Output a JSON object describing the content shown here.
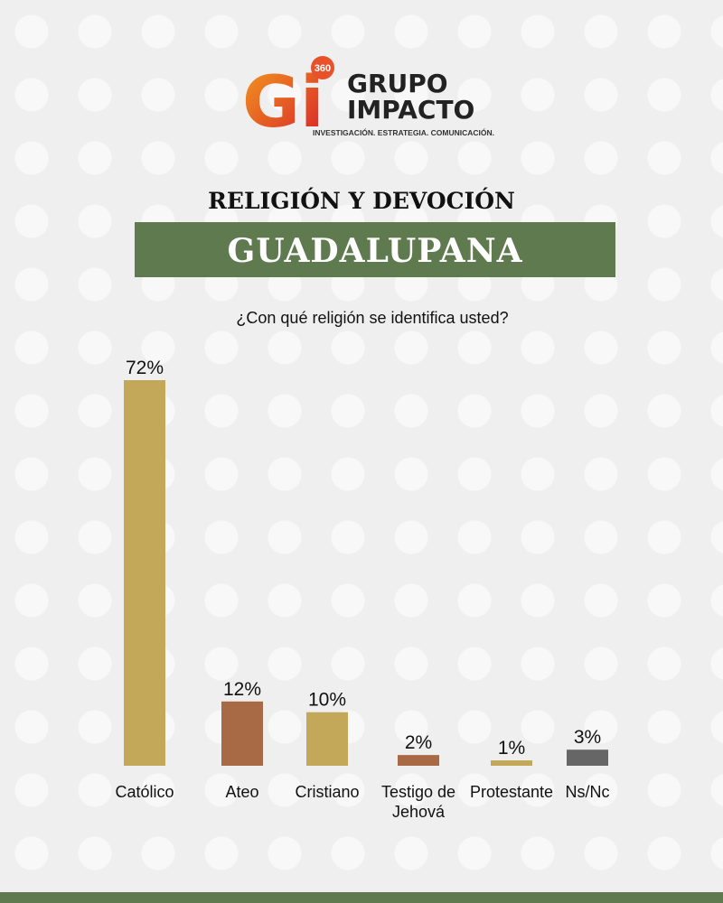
{
  "logo": {
    "mark": "Gi",
    "badge": "360",
    "name_line1": "GRUPO",
    "name_line2": "IMPACTO",
    "tagline": "INVESTIGACIÓN. ESTRATEGIA. COMUNICACIÓN."
  },
  "header": {
    "title": "RELIGIÓN Y DEVOCIÓN",
    "banner": "GUADALUPANA"
  },
  "chart_data": {
    "type": "bar",
    "title": "¿Con qué religión se identifica usted?",
    "categories": [
      "Católico",
      "Ateo",
      "Cristiano",
      "Testigo de Jehová",
      "Protestante",
      "Ns/Nc"
    ],
    "values": [
      72,
      12,
      10,
      2,
      1,
      3
    ],
    "value_labels": [
      "72%",
      "12%",
      "10%",
      "2%",
      "1%",
      "3%"
    ],
    "colors": [
      "#c4a85a",
      "#a86a44",
      "#c4a85a",
      "#a86a44",
      "#c4a85a",
      "#666666"
    ]
  }
}
